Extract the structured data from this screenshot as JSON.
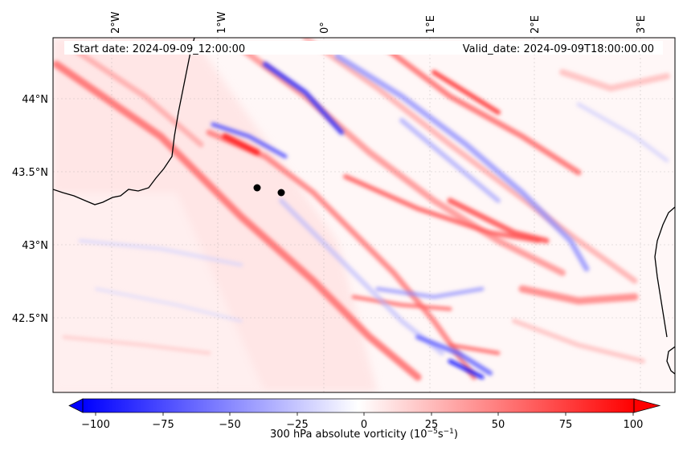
{
  "map": {
    "start_date": "Start date: 2024-09-09_12:00:00",
    "valid_date": "Valid_date: 2024-09-09T18:00:00.00",
    "lon_ticks": [
      "2°W",
      "1°W",
      "0°",
      "1°E",
      "2°E",
      "3°E"
    ],
    "lat_ticks": [
      "44°N",
      "43.5°N",
      "43°N",
      "42.5°N"
    ],
    "colorbar": {
      "ticks": [
        "−100",
        "−75",
        "−50",
        "−25",
        "0",
        "25",
        "50",
        "75",
        "100"
      ],
      "label_main": "300 hPa absolute vorticity (10",
      "label_exp1": "−5",
      "label_mid": "s",
      "label_exp2": "−1",
      "label_end": ")",
      "min": -100,
      "max": 100,
      "low_color": "#0000ff",
      "mid_color": "#ffffff",
      "high_color": "#ff0000"
    },
    "markers": [
      "point-a",
      "point-b"
    ],
    "colors": {
      "coastline": "#000000",
      "marker": "#000000"
    }
  }
}
